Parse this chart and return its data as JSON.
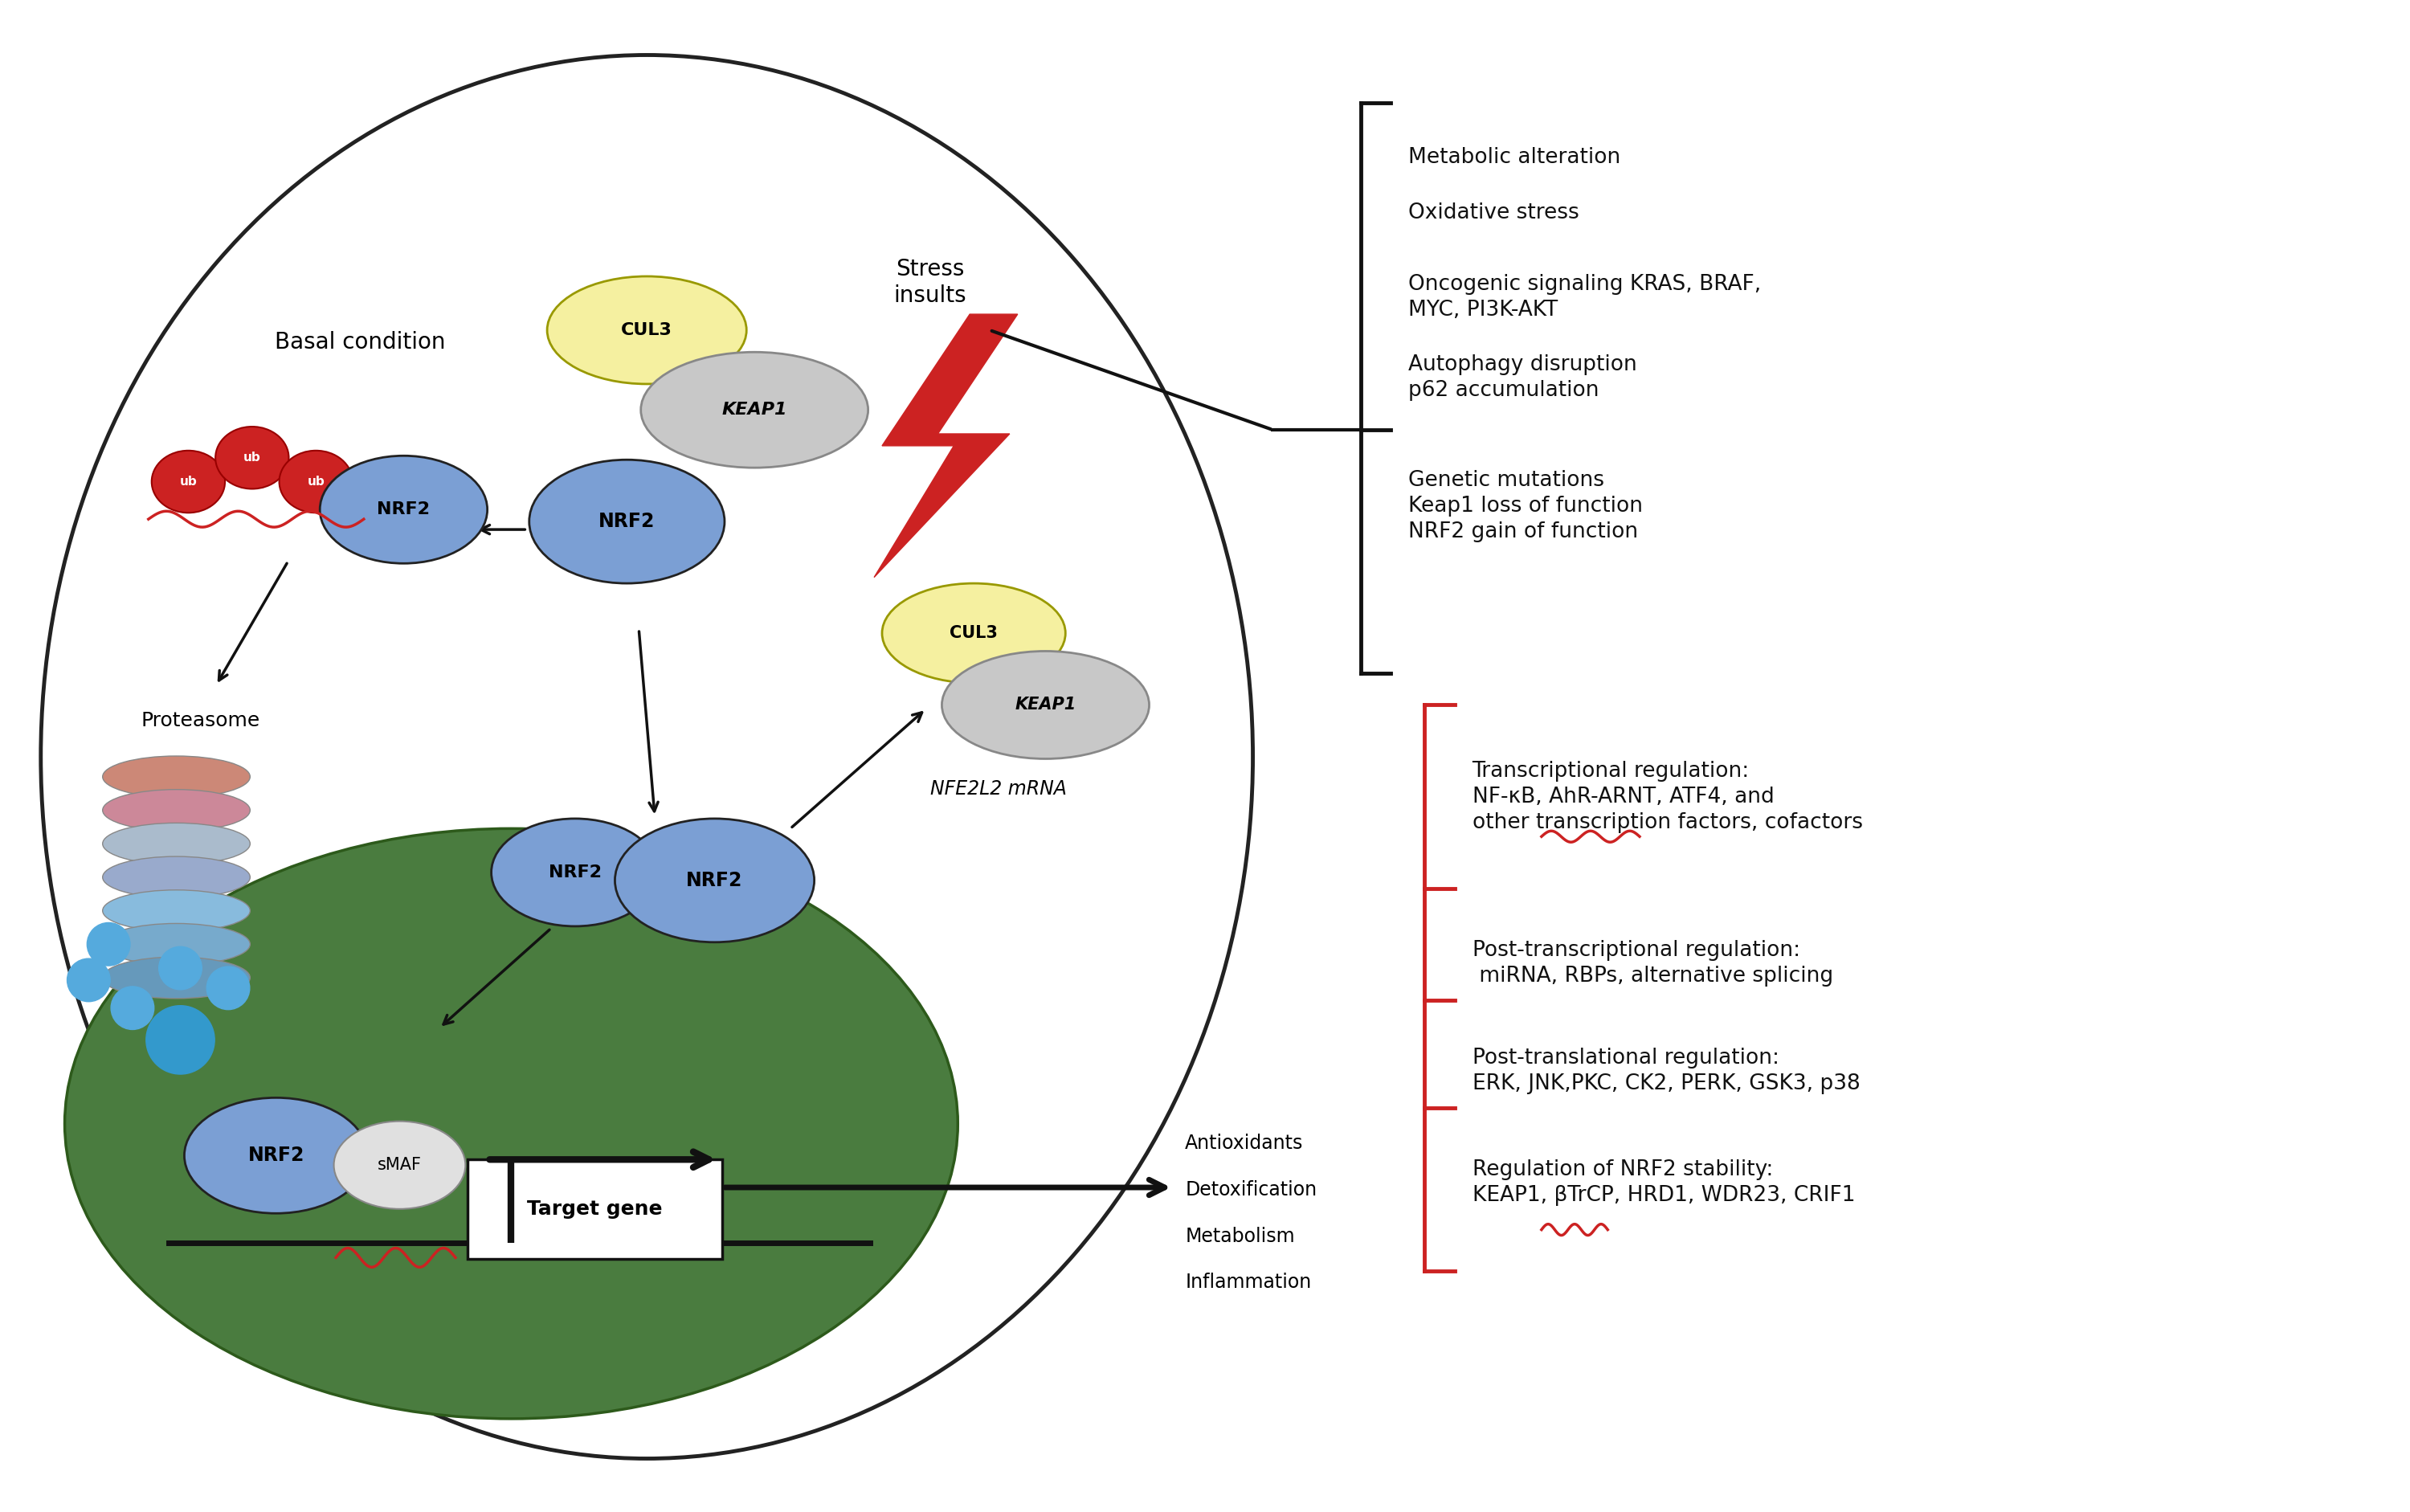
{
  "bg_color": "#ffffff",
  "nucleus_color": "#4a7c3f",
  "nrf2_color": "#7b9fd4",
  "cul3_color": "#f5f0a0",
  "keap1_color": "#c8c8c8",
  "ub_color": "#cc2222",
  "arrow_color": "#111111",
  "red_color": "#cc2222",
  "right_black_bracket_texts": [
    "Metabolic alteration",
    "Oxidative stress",
    "Oncogenic signaling KRAS, BRAF,\nMYC, PI3K-AKT",
    "Autophagy disruption\np62 accumulation",
    "Genetic mutations\nKeap1 loss of function\nNRF2 gain of function"
  ],
  "right_red_bracket_texts": [
    "Transcriptional regulation:\nNF-κB, AhR-ARNT, ATF4, and\nother transcription factors, cofactors",
    "Post-transcriptional regulation:\n miRNA, RBPs, alternative splicing",
    "Post-translational regulation:\nERK, JNK,PKC, CK2, PERK, GSK3, p38",
    "Regulation of NRF2 stability:\nKEAP1, βTrCP, HRD1, WDR23, CRIF1"
  ]
}
